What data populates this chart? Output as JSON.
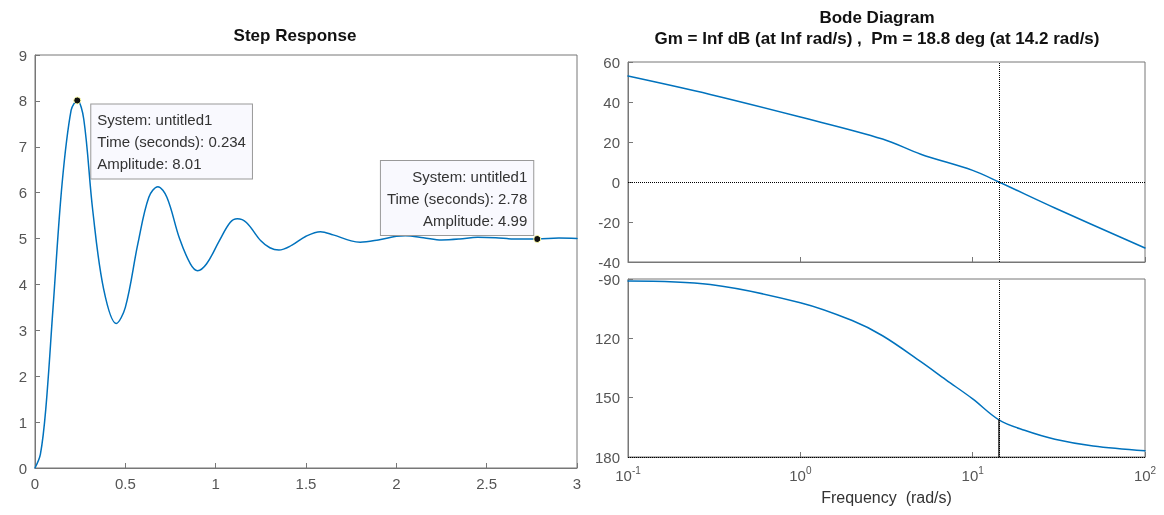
{
  "chart_data": [
    {
      "type": "line",
      "title": "Step Response",
      "xlim": [
        0,
        3
      ],
      "xticks": [
        0,
        0.5,
        1,
        1.5,
        2,
        2.5,
        3
      ],
      "ylim": [
        0,
        9
      ],
      "yticks": [
        0,
        1,
        2,
        3,
        4,
        5,
        6,
        7,
        8,
        9
      ],
      "grid": false,
      "marker": "none",
      "line_style": "solid",
      "series": [
        {
          "color": "#0072bd",
          "x": [
            0,
            0.03,
            0.06,
            0.1,
            0.15,
            0.2,
            0.234,
            0.27,
            0.32,
            0.38,
            0.45,
            0.5,
            0.57,
            0.63,
            0.68,
            0.73,
            0.8,
            0.86,
            0.9,
            0.95,
            1.02,
            1.08,
            1.12,
            1.17,
            1.25,
            1.3,
            1.35,
            1.42,
            1.5,
            1.58,
            1.65,
            1.75,
            1.8,
            1.9,
            2,
            2.05,
            2.15,
            2.25,
            2.35,
            2.45,
            2.55,
            2.65,
            2.78,
            2.9,
            3
          ],
          "values": [
            0,
            0.3,
            1.3,
            3.5,
            6.2,
            7.8,
            8.01,
            7.6,
            5.6,
            3.9,
            3.15,
            3.5,
            4.9,
            5.9,
            6.13,
            5.9,
            5,
            4.45,
            4.3,
            4.45,
            4.95,
            5.35,
            5.43,
            5.35,
            4.95,
            4.8,
            4.75,
            4.85,
            5.05,
            5.15,
            5.08,
            4.95,
            4.92,
            4.97,
            5.05,
            5.06,
            5.02,
            4.97,
            4.99,
            5.03,
            5.02,
            4.99,
            4.99,
            5.01,
            5
          ]
        }
      ],
      "annotations": [
        {
          "text": "System: untitled1\nTime (seconds): 0.234\nAmplitude: 8.01",
          "x": 0.234,
          "y": 8.01
        },
        {
          "text": "System: untitled1\nTime (seconds): 2.78\nAmplitude: 4.99",
          "x": 2.78,
          "y": 4.99
        }
      ]
    },
    {
      "type": "line",
      "title": "Bode Diagram",
      "subtitle": "Gm = Inf dB (at Inf rad/s) ,  Pm = 18.8 deg (at 14.2 rad/s)",
      "log": "x",
      "xlim": [
        0.1,
        100
      ],
      "xticks": [
        0.1,
        1,
        10,
        100
      ],
      "ylim": [
        -40,
        60
      ],
      "yticks": [
        -40,
        -20,
        0,
        20,
        40,
        60
      ],
      "tick_labels": "y",
      "grid": false,
      "marker": "none",
      "line_style": "solid",
      "series": [
        {
          "color": "#0072bd",
          "x": [
            0.1,
            0.3,
            1,
            3,
            5,
            10,
            14.2,
            30,
            100
          ],
          "values": [
            53,
            43.8,
            32.5,
            21.5,
            13.9,
            5.8,
            0,
            -13,
            -33
          ]
        }
      ],
      "ref_lines": [
        {
          "axis": "y",
          "value": 0,
          "color": "#000000",
          "line_style": "dotted"
        },
        {
          "axis": "x",
          "value": 14.2,
          "color": "#000000",
          "line_style": "dotted"
        }
      ]
    },
    {
      "type": "line",
      "xlabel": "Frequency  (rad/s)",
      "log": "x",
      "xlim": [
        0.1,
        100
      ],
      "xticks": [
        {
          "value": 0.1,
          "label": "10$^{-1}$"
        },
        {
          "value": 1,
          "label": "10$^{0}$"
        },
        {
          "value": 10,
          "label": "10$^{1}$"
        },
        {
          "value": 100,
          "label": "10$^{2}$"
        }
      ],
      "ylim": [
        -180,
        -90
      ],
      "yticks": [
        {
          "value": -180,
          "label": "180"
        },
        {
          "value": -150,
          "label": "150"
        },
        {
          "value": -120,
          "label": "120"
        },
        -90
      ],
      "grid": false,
      "marker": "none",
      "line_style": "solid",
      "series": [
        {
          "color": "#0072bd",
          "x": [
            0.1,
            0.3,
            1,
            2,
            3,
            5,
            7,
            10,
            14.2,
            20,
            30,
            50,
            100
          ],
          "values": [
            -91,
            -92.8,
            -102,
            -111,
            -118.7,
            -131.8,
            -141,
            -150.6,
            -161.2,
            -166.5,
            -171,
            -174.4,
            -176.8
          ]
        },
        {
          "color": "#333333",
          "x": [
            14.2,
            14.2
          ],
          "values": [
            -161.2,
            -180
          ]
        }
      ],
      "ref_lines": [
        {
          "axis": "y",
          "value": -180,
          "color": "#000000",
          "line_style": "dotted"
        },
        {
          "axis": "x",
          "value": 14.2,
          "color": "#000000",
          "line_style": "dotted"
        }
      ]
    }
  ]
}
